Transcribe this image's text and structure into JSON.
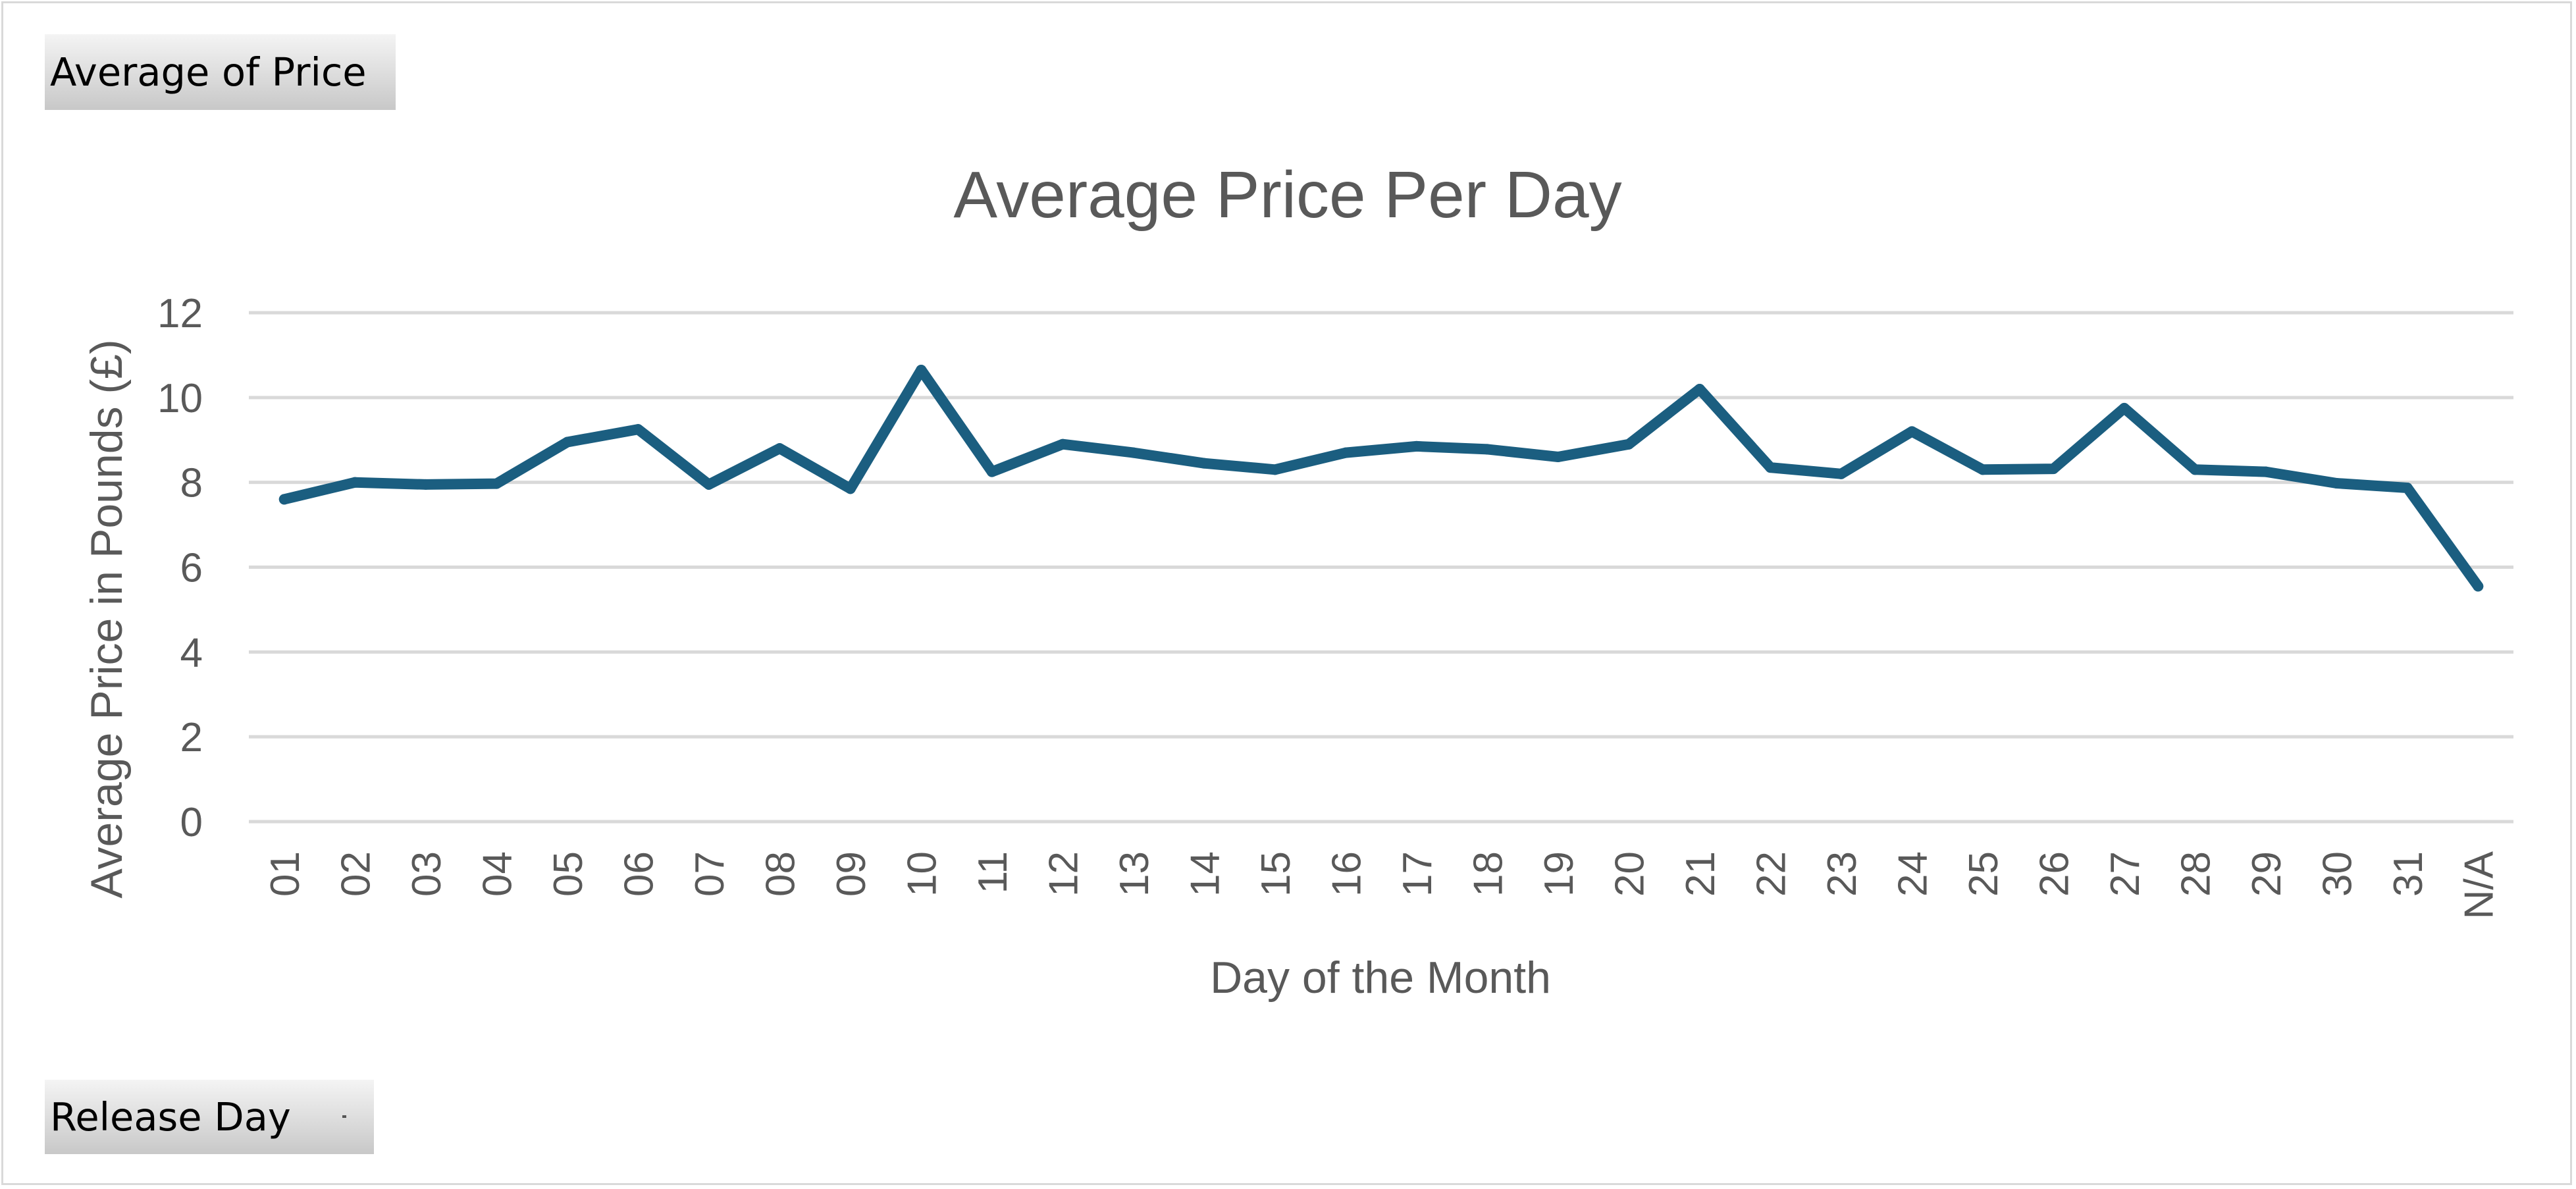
{
  "pivot_fields": {
    "value_field": "Average of Price",
    "axis_field": "Release Day"
  },
  "colors": {
    "series_line": "#1b5e80",
    "gridline": "#d9d9d9",
    "text": "#595959"
  },
  "chart_data": {
    "type": "line",
    "title": "Average Price Per Day",
    "xlabel": "Day of the Month",
    "ylabel": "Average Price in Pounds (£)",
    "categories": [
      "01",
      "02",
      "03",
      "04",
      "05",
      "06",
      "07",
      "08",
      "09",
      "10",
      "11",
      "12",
      "13",
      "14",
      "15",
      "16",
      "17",
      "18",
      "19",
      "20",
      "21",
      "22",
      "23",
      "24",
      "25",
      "26",
      "27",
      "28",
      "29",
      "30",
      "31",
      "N/A"
    ],
    "series": [
      {
        "values": [
          7.6,
          8.0,
          7.95,
          7.97,
          8.95,
          9.25,
          7.95,
          8.8,
          7.85,
          10.65,
          8.25,
          8.9,
          8.7,
          8.45,
          8.3,
          8.7,
          8.85,
          8.78,
          8.6,
          8.9,
          10.2,
          8.35,
          8.2,
          9.2,
          8.3,
          8.32,
          9.75,
          8.3,
          8.25,
          7.98,
          7.87,
          5.55
        ]
      }
    ],
    "yticks": [
      0,
      2,
      4,
      6,
      8,
      10,
      12
    ],
    "ylim": [
      0,
      12
    ],
    "grid": true,
    "legend": "none"
  }
}
